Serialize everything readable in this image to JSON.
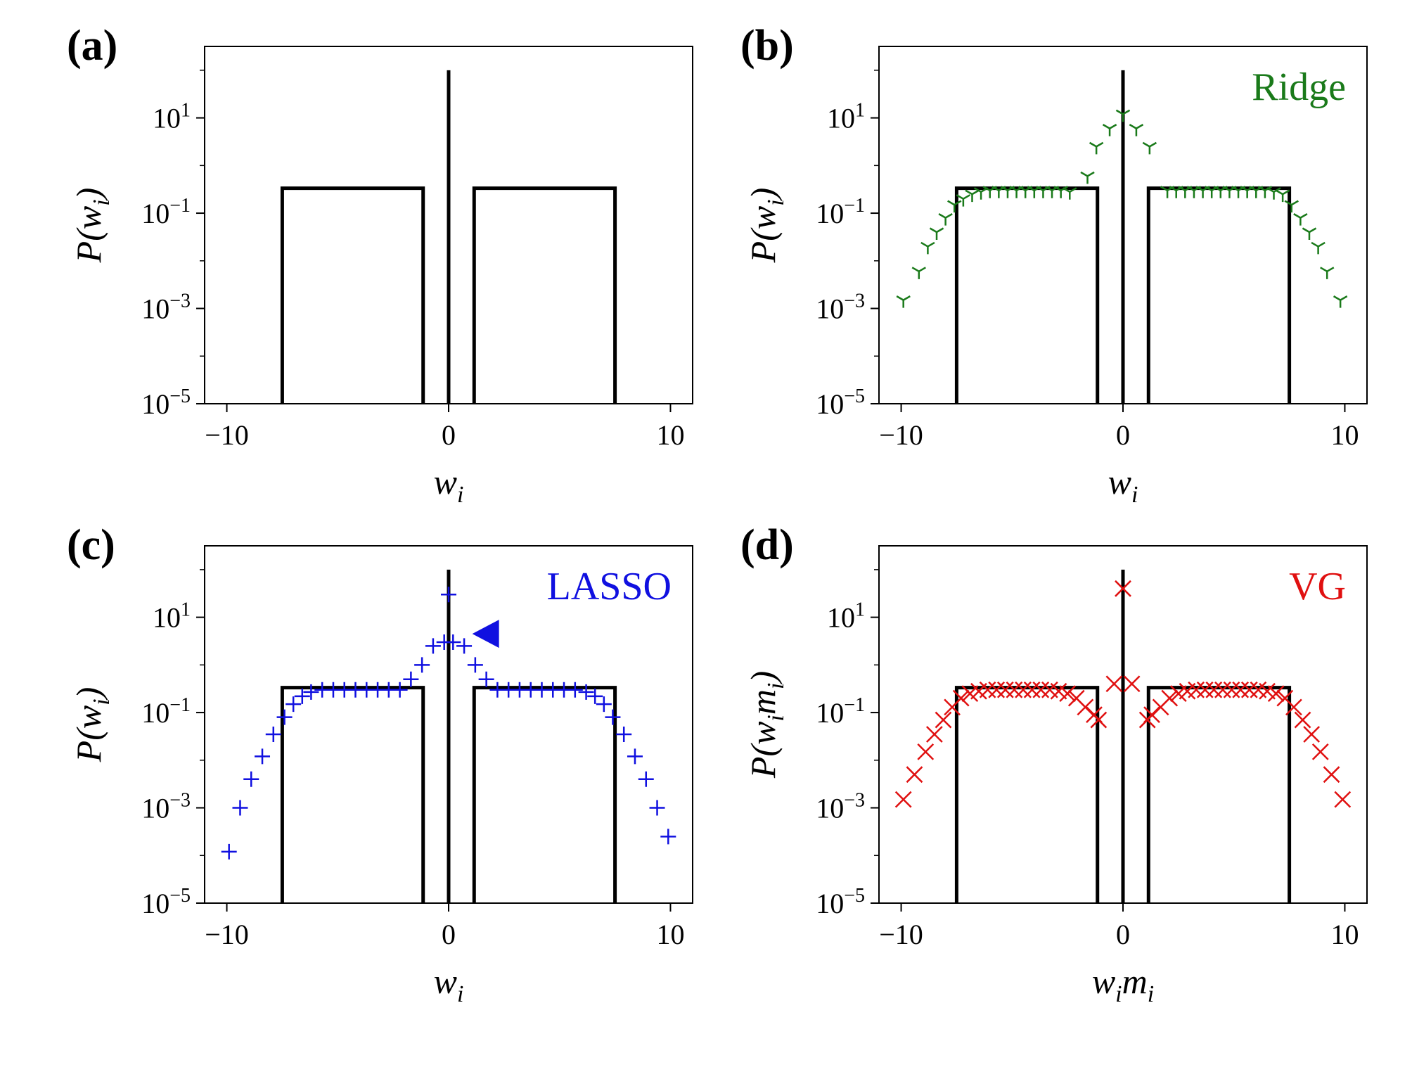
{
  "figure": {
    "background": "#ffffff"
  },
  "chart_data": [
    {
      "panel": "(a)",
      "type": "line",
      "log_y": true,
      "xlim": [
        -11,
        11
      ],
      "ylim_exponent": [
        -5,
        2.5
      ],
      "xticks": [
        -10,
        0,
        10
      ],
      "xtick_labels": [
        "−10",
        "0",
        "10"
      ],
      "yticks_exponent": [
        1,
        -1,
        -3,
        -5
      ],
      "ytick_base": "10",
      "ytick_exponents": [
        "1",
        "−1",
        "−3",
        "−5"
      ],
      "xlabel": "w",
      "xlabel_sub": "i",
      "ylabel": "P(w",
      "ylabel_sub": "i",
      "ylabel_close": ")",
      "legend": null,
      "true_distribution": {
        "color": "#000000",
        "level": 0.333,
        "spike_height": 100,
        "box_left": [
          -7.5,
          -1.15
        ],
        "box_right": [
          1.15,
          7.5
        ]
      },
      "series": []
    },
    {
      "panel": "(b)",
      "type": "scatter",
      "log_y": true,
      "xlim": [
        -11,
        11
      ],
      "ylim_exponent": [
        -5,
        2.5
      ],
      "xticks": [
        -10,
        0,
        10
      ],
      "xtick_labels": [
        "−10",
        "0",
        "10"
      ],
      "yticks_exponent": [
        1,
        -1,
        -3,
        -5
      ],
      "ytick_base": "10",
      "ytick_exponents": [
        "1",
        "−1",
        "−3",
        "−5"
      ],
      "xlabel": "w",
      "xlabel_sub": "i",
      "ylabel": "P(w",
      "ylabel_sub": "i",
      "ylabel_close": ")",
      "legend": {
        "label": "Ridge",
        "color": "#1a7a1a"
      },
      "true_distribution": {
        "color": "#000000",
        "level": 0.333,
        "spike_height": 100,
        "box_left": [
          -7.5,
          -1.15
        ],
        "box_right": [
          1.15,
          7.5
        ]
      },
      "series": [
        {
          "name": "Ridge",
          "marker": "tri_down",
          "color": "#1a7a1a",
          "x": [
            -9.9,
            -9.2,
            -8.8,
            -8.4,
            -8.0,
            -7.6,
            -7.2,
            -6.8,
            -6.4,
            -6.0,
            -5.6,
            -5.2,
            -4.8,
            -4.4,
            -4.0,
            -3.6,
            -3.2,
            -2.8,
            -2.4,
            -1.6,
            -1.2,
            -0.6,
            0,
            0.6,
            1.2,
            2.0,
            2.4,
            2.8,
            3.2,
            3.6,
            4.0,
            4.4,
            4.8,
            5.2,
            5.6,
            6.0,
            6.4,
            6.8,
            7.2,
            7.6,
            8.0,
            8.4,
            8.8,
            9.2,
            9.8
          ],
          "y": [
            0.0015,
            0.006,
            0.02,
            0.04,
            0.08,
            0.15,
            0.2,
            0.25,
            0.28,
            0.3,
            0.3,
            0.3,
            0.3,
            0.3,
            0.3,
            0.3,
            0.3,
            0.3,
            0.28,
            0.6,
            2.5,
            6,
            12,
            6,
            2.5,
            0.3,
            0.3,
            0.3,
            0.3,
            0.3,
            0.3,
            0.3,
            0.3,
            0.3,
            0.3,
            0.3,
            0.3,
            0.28,
            0.25,
            0.15,
            0.08,
            0.04,
            0.02,
            0.006,
            0.0015
          ]
        }
      ]
    },
    {
      "panel": "(c)",
      "type": "scatter",
      "log_y": true,
      "xlim": [
        -11,
        11
      ],
      "ylim_exponent": [
        -5,
        2.5
      ],
      "xticks": [
        -10,
        0,
        10
      ],
      "xtick_labels": [
        "−10",
        "0",
        "10"
      ],
      "yticks_exponent": [
        1,
        -1,
        -3,
        -5
      ],
      "ytick_base": "10",
      "ytick_exponents": [
        "1",
        "−1",
        "−3",
        "−5"
      ],
      "xlabel": "w",
      "xlabel_sub": "i",
      "ylabel": "P(w",
      "ylabel_sub": "i",
      "ylabel_close": ")",
      "legend": {
        "label": "LASSO",
        "color": "#1010e0"
      },
      "annotation": {
        "marker": "triangle_left",
        "x": 1.7,
        "y": 4.5,
        "color": "#1010e0"
      },
      "true_distribution": {
        "color": "#000000",
        "level": 0.333,
        "spike_height": 100,
        "box_left": [
          -7.5,
          -1.15
        ],
        "box_right": [
          1.15,
          7.5
        ]
      },
      "series": [
        {
          "name": "LASSO",
          "marker": "plus",
          "color": "#1010e0",
          "x": [
            -9.9,
            -9.4,
            -8.9,
            -8.4,
            -7.9,
            -7.4,
            -7.0,
            -6.6,
            -6.2,
            -5.7,
            -5.2,
            -4.7,
            -4.2,
            -3.7,
            -3.2,
            -2.7,
            -2.2,
            -1.7,
            -1.2,
            -0.7,
            -0.2,
            0,
            0.2,
            0.7,
            1.2,
            1.7,
            2.2,
            2.7,
            3.2,
            3.7,
            4.2,
            4.7,
            5.2,
            5.7,
            6.2,
            6.6,
            7.0,
            7.4,
            7.9,
            8.4,
            8.9,
            9.4,
            9.9
          ],
          "y": [
            0.00012,
            0.001,
            0.004,
            0.012,
            0.035,
            0.08,
            0.15,
            0.22,
            0.27,
            0.3,
            0.3,
            0.3,
            0.3,
            0.3,
            0.3,
            0.3,
            0.3,
            0.5,
            1.0,
            2.5,
            3.0,
            30,
            3.0,
            2.5,
            1.0,
            0.5,
            0.3,
            0.3,
            0.3,
            0.3,
            0.3,
            0.3,
            0.3,
            0.3,
            0.27,
            0.22,
            0.15,
            0.08,
            0.035,
            0.012,
            0.004,
            0.001,
            0.00025
          ]
        }
      ]
    },
    {
      "panel": "(d)",
      "type": "scatter",
      "log_y": true,
      "xlim": [
        -11,
        11
      ],
      "ylim_exponent": [
        -5,
        2.5
      ],
      "xticks": [
        -10,
        0,
        10
      ],
      "xtick_labels": [
        "−10",
        "0",
        "10"
      ],
      "yticks_exponent": [
        1,
        -1,
        -3,
        -5
      ],
      "ytick_base": "10",
      "ytick_exponents": [
        "1",
        "−1",
        "−3",
        "−5"
      ],
      "xlabel": "w",
      "xlabel_sub": "i",
      "xlabel2": "m",
      "xlabel2_sub": "i",
      "ylabel": "P(w",
      "ylabel_sub": "i",
      "ylabel_mid": "m",
      "ylabel_mid_sub": "i",
      "ylabel_close": ")",
      "legend": {
        "label": "VG",
        "color": "#e01010"
      },
      "true_distribution": {
        "color": "#000000",
        "level": 0.333,
        "spike_height": 100,
        "box_left": [
          -7.5,
          -1.15
        ],
        "box_right": [
          1.15,
          7.5
        ]
      },
      "series": [
        {
          "name": "VG",
          "marker": "x",
          "color": "#e01010",
          "x": [
            -9.9,
            -9.4,
            -8.9,
            -8.5,
            -8.1,
            -7.7,
            -7.3,
            -6.9,
            -6.5,
            -6.1,
            -5.7,
            -5.3,
            -4.9,
            -4.5,
            -4.1,
            -3.7,
            -3.3,
            -2.9,
            -2.5,
            -2.1,
            -1.7,
            -1.3,
            -1.1,
            -0.4,
            0,
            0.4,
            1.1,
            1.3,
            1.7,
            2.1,
            2.5,
            2.9,
            3.3,
            3.7,
            4.1,
            4.5,
            4.9,
            5.3,
            5.7,
            6.1,
            6.5,
            6.9,
            7.3,
            7.7,
            8.1,
            8.5,
            8.9,
            9.4,
            9.9
          ],
          "y": [
            0.0015,
            0.005,
            0.015,
            0.035,
            0.07,
            0.13,
            0.2,
            0.25,
            0.28,
            0.3,
            0.3,
            0.3,
            0.3,
            0.3,
            0.3,
            0.3,
            0.3,
            0.28,
            0.25,
            0.2,
            0.13,
            0.09,
            0.07,
            0.4,
            40,
            0.4,
            0.07,
            0.09,
            0.13,
            0.2,
            0.25,
            0.28,
            0.3,
            0.3,
            0.3,
            0.3,
            0.3,
            0.3,
            0.3,
            0.3,
            0.28,
            0.25,
            0.2,
            0.13,
            0.07,
            0.035,
            0.015,
            0.005,
            0.0015
          ]
        }
      ]
    }
  ]
}
